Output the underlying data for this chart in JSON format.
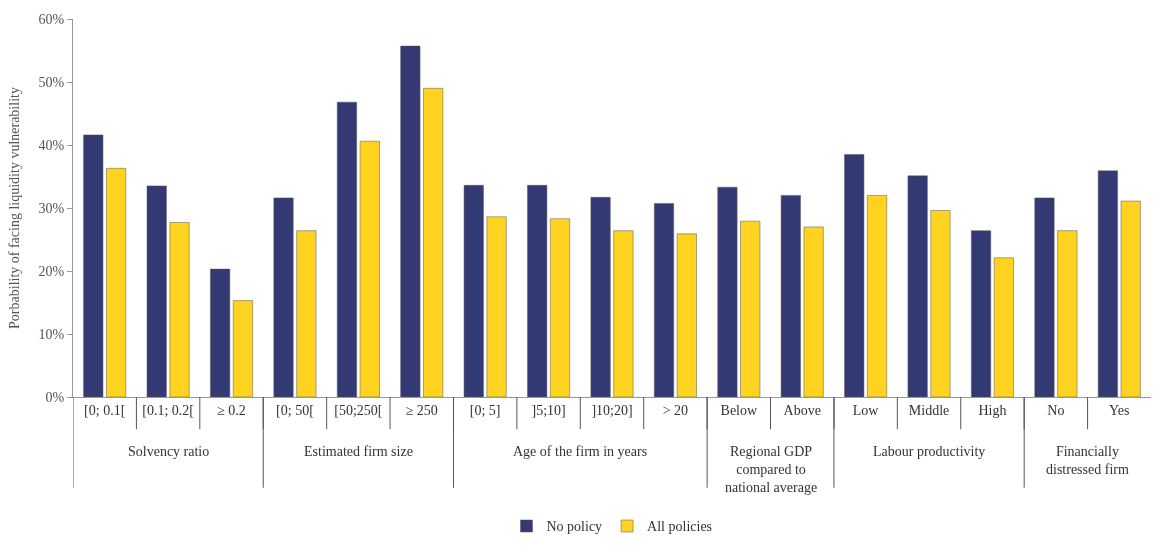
{
  "chart_data": {
    "type": "bar",
    "ylabel": "Porbability of facing liquidity vulnerability",
    "categories": [
      "[0; 0.1[",
      "[0.1; 0.2[",
      "≥ 0.2",
      "[0; 50[",
      "[50;250[",
      "≥ 250",
      "[0; 5]",
      "]5;10]",
      "]10;20]",
      "> 20",
      "Below",
      "Above",
      "Low",
      "Middle",
      "High",
      "No",
      "Yes"
    ],
    "series": [
      {
        "name": "No policy",
        "color": "#333a73",
        "values": [
          41.6,
          33.5,
          20.3,
          31.6,
          46.8,
          55.7,
          33.6,
          33.6,
          31.7,
          30.7,
          33.3,
          32.0,
          38.5,
          35.1,
          26.4,
          31.6,
          35.9
        ]
      },
      {
        "name": "All policies",
        "color": "#ffd320",
        "values": [
          36.3,
          27.7,
          15.3,
          26.4,
          40.6,
          49.0,
          28.6,
          28.3,
          26.4,
          25.9,
          27.9,
          27.0,
          32.0,
          29.6,
          22.1,
          26.4,
          31.1
        ]
      }
    ],
    "annotations": [
      "Solvency ratio",
      "Estimated firm size",
      "Age of the firm in years",
      "Regional GDP compared to national average",
      "Labour productivity",
      "Financially distressed firm"
    ],
    "ylim": [
      0,
      60
    ],
    "yticks": [
      {
        "value": 0,
        "label": "0%"
      },
      {
        "value": 10,
        "label": "10%"
      },
      {
        "value": 20,
        "label": "20%"
      },
      {
        "value": 30,
        "label": "30%"
      },
      {
        "value": 40,
        "label": "40%"
      },
      {
        "value": 50,
        "label": "50%"
      },
      {
        "value": 60,
        "label": "60%"
      }
    ],
    "legend": "bottom"
  }
}
